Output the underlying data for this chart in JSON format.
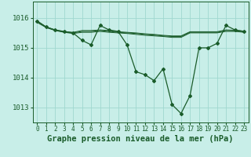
{
  "background_color": "#c8eee8",
  "grid_color": "#a0d8d0",
  "line_color": "#1a5c2a",
  "xlabel": "Graphe pression niveau de la mer (hPa)",
  "xlabel_fontsize": 7.5,
  "yticks": [
    1013,
    1014,
    1015,
    1016
  ],
  "xlim": [
    -0.5,
    23.5
  ],
  "ylim": [
    1012.5,
    1016.55
  ],
  "series": [
    [
      1015.9,
      1015.7,
      1015.6,
      1015.55,
      1015.5,
      1015.25,
      1015.1,
      1015.75,
      1015.6,
      1015.55,
      1015.1,
      1014.2,
      1014.1,
      1013.9,
      1014.3,
      1013.1,
      1012.8,
      1013.4,
      1015.0,
      1015.0,
      1015.15,
      1015.75,
      1015.6,
      1015.55
    ],
    [
      1015.85,
      1015.68,
      1015.58,
      1015.52,
      1015.48,
      1015.52,
      1015.52,
      1015.55,
      1015.52,
      1015.5,
      1015.48,
      1015.45,
      1015.42,
      1015.4,
      1015.38,
      1015.35,
      1015.35,
      1015.5,
      1015.5,
      1015.5,
      1015.5,
      1015.55,
      1015.55,
      1015.52
    ],
    [
      1015.88,
      1015.69,
      1015.59,
      1015.53,
      1015.5,
      1015.55,
      1015.55,
      1015.58,
      1015.55,
      1015.52,
      1015.5,
      1015.48,
      1015.45,
      1015.43,
      1015.4,
      1015.38,
      1015.38,
      1015.52,
      1015.52,
      1015.52,
      1015.52,
      1015.58,
      1015.57,
      1015.54
    ],
    [
      1015.9,
      1015.7,
      1015.6,
      1015.54,
      1015.52,
      1015.58,
      1015.58,
      1015.6,
      1015.58,
      1015.54,
      1015.52,
      1015.5,
      1015.47,
      1015.45,
      1015.42,
      1015.4,
      1015.4,
      1015.54,
      1015.54,
      1015.54,
      1015.54,
      1015.6,
      1015.59,
      1015.56
    ]
  ],
  "xtick_labels": [
    "0",
    "1",
    "2",
    "3",
    "4",
    "5",
    "6",
    "7",
    "8",
    "9",
    "10",
    "11",
    "12",
    "13",
    "14",
    "15",
    "16",
    "17",
    "18",
    "19",
    "20",
    "21",
    "22",
    "23"
  ],
  "tick_fontsize": 5.5,
  "ytick_fontsize": 6.5
}
